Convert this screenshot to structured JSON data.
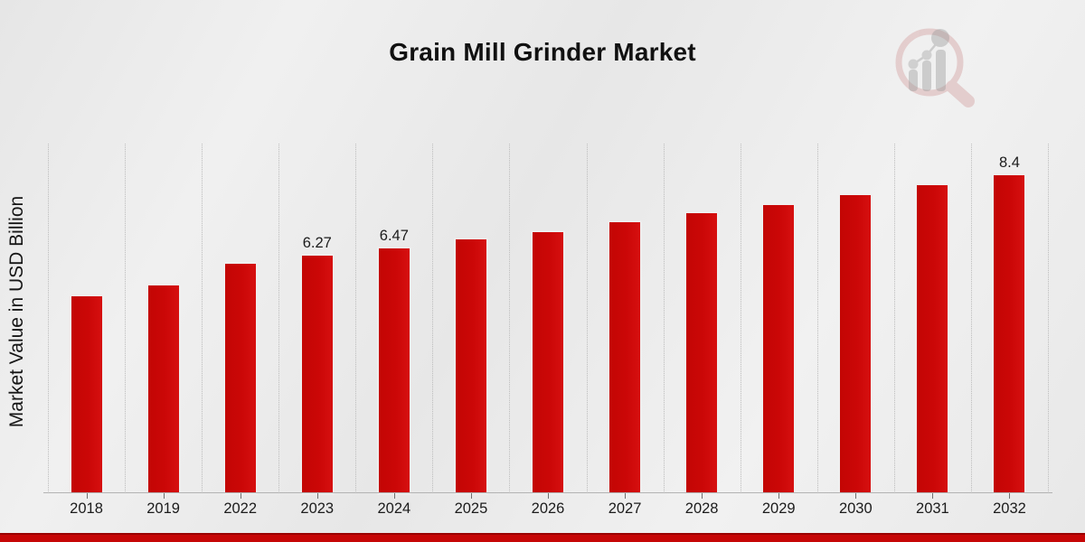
{
  "page": {
    "title": "Grain Mill Grinder Market",
    "ylabel": "Market Value in USD Billion"
  },
  "watermark": {
    "name": "market-research-future-logo"
  },
  "colors": {
    "bar": "#cb0707",
    "grid": "#bdbdbd",
    "axis": "#b3b3b3",
    "footer_strip": "#c60606",
    "footer_strip_edge": "#9a0202",
    "text": "#1a1a1a"
  },
  "chart_data": {
    "type": "bar",
    "title": "Grain Mill Grinder Market",
    "xlabel": "",
    "ylabel": "Market Value in USD Billion",
    "categories": [
      "2018",
      "2019",
      "2022",
      "2023",
      "2024",
      "2025",
      "2026",
      "2027",
      "2028",
      "2029",
      "2030",
      "2031",
      "2032"
    ],
    "values": [
      5.2,
      5.5,
      6.06,
      6.27,
      6.47,
      6.7,
      6.9,
      7.16,
      7.4,
      7.62,
      7.87,
      8.14,
      8.4
    ],
    "data_labels": [
      "",
      "",
      "",
      "6.27",
      "6.47",
      "",
      "",
      "",
      "",
      "",
      "",
      "",
      "8.4"
    ],
    "ylim": [
      0,
      9.24
    ],
    "grid": "vertical-dotted",
    "legend": "none",
    "bar_color": "#cb0707"
  }
}
